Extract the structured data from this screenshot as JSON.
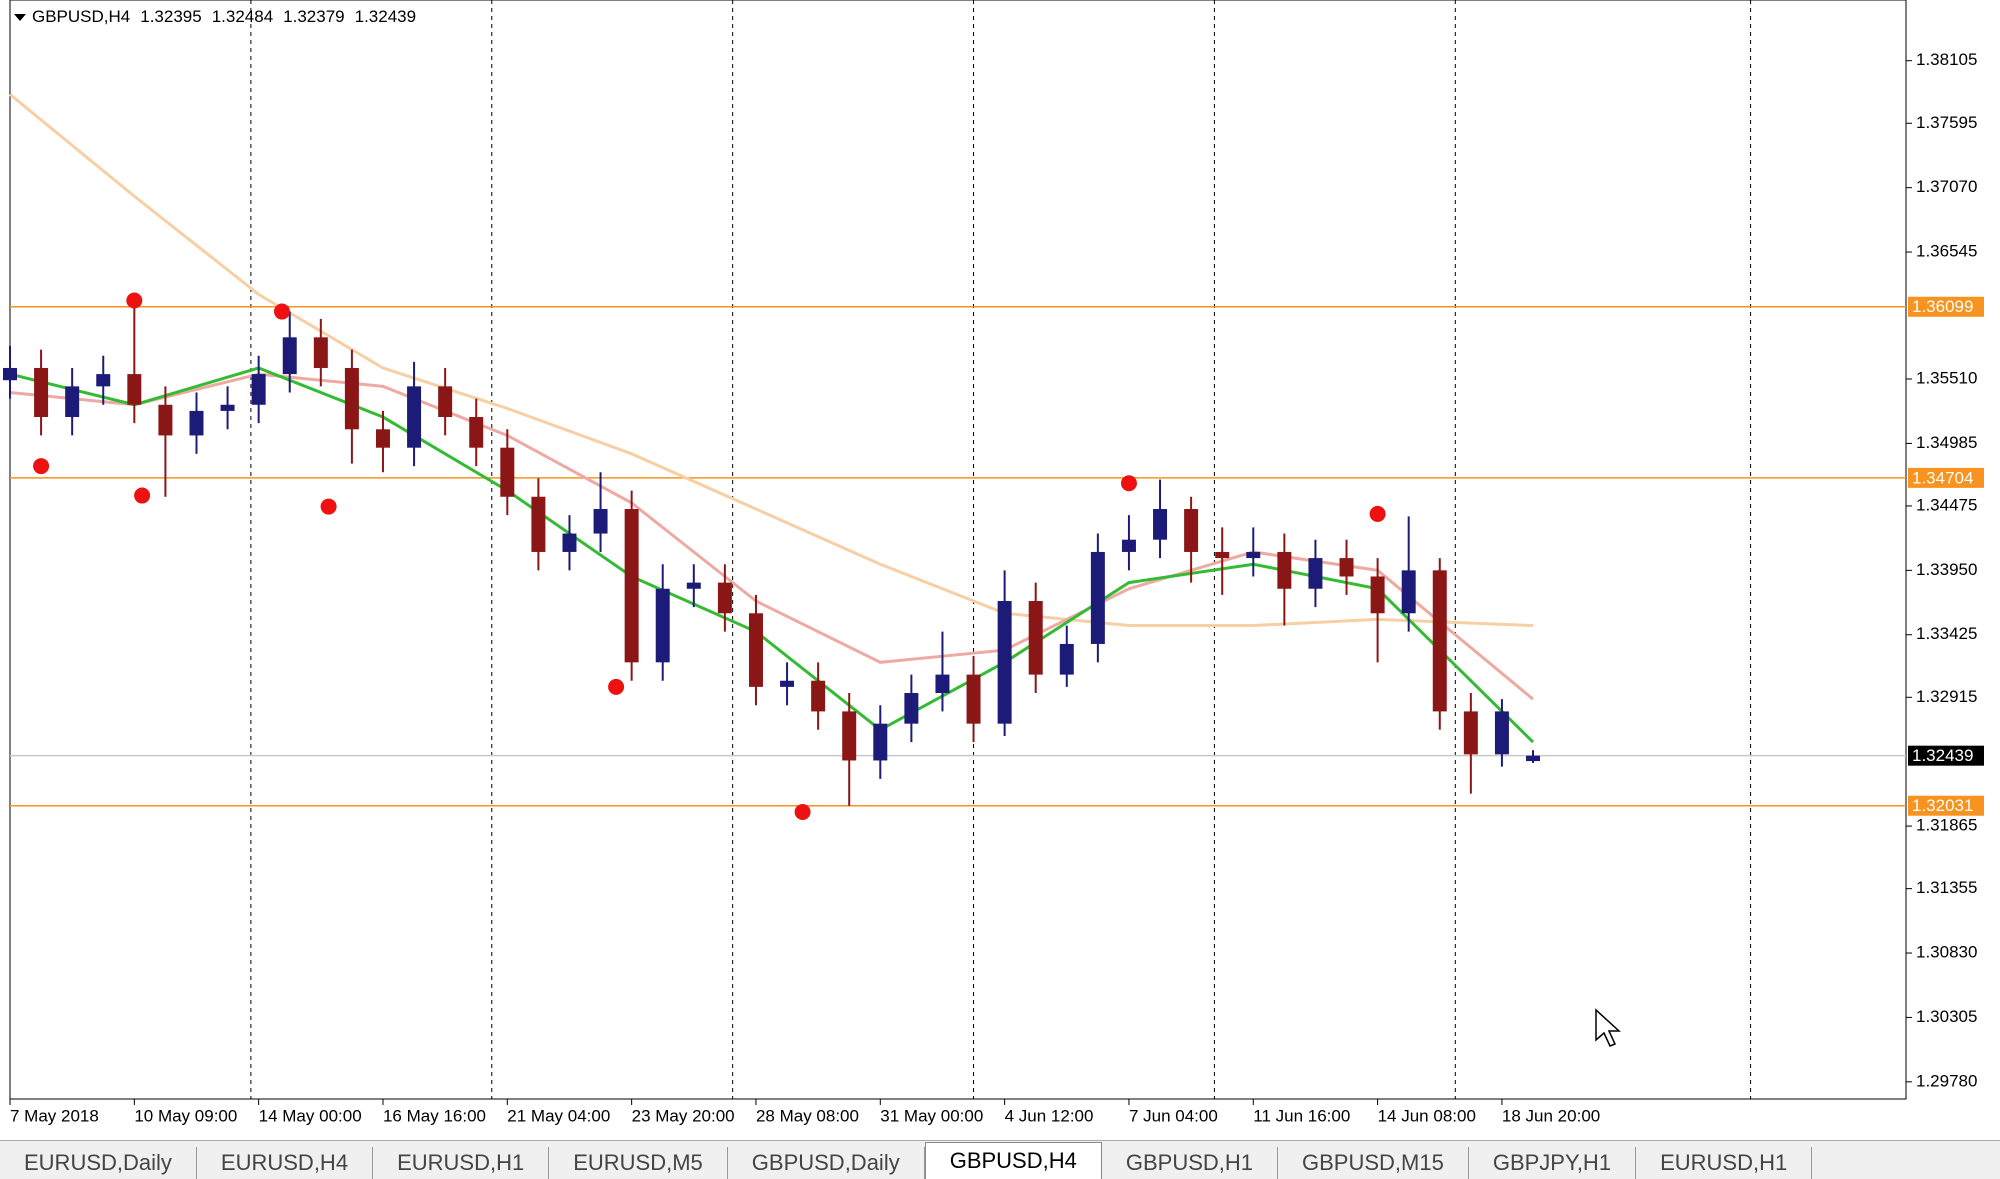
{
  "chart_data": {
    "type": "candlestick",
    "symbol": "GBPUSD,H4",
    "ohlc": [
      1.32395,
      1.32484,
      1.32379,
      1.32439
    ],
    "x": [
      0,
      4,
      8,
      12,
      16,
      20,
      24,
      28,
      32,
      36,
      40,
      44,
      48,
      52,
      56,
      60,
      64,
      68,
      72,
      76,
      80,
      84,
      88,
      92,
      96,
      100,
      104,
      108,
      112,
      116,
      120,
      124,
      128,
      132,
      136,
      140,
      144,
      148,
      152,
      156,
      160,
      164,
      168,
      172,
      176,
      180,
      184,
      188,
      192,
      196
    ],
    "open": [
      1.355,
      1.356,
      1.352,
      1.3545,
      1.3555,
      1.353,
      1.3505,
      1.3525,
      1.353,
      1.3555,
      1.3585,
      1.356,
      1.351,
      1.3495,
      1.3545,
      1.352,
      1.3495,
      1.3455,
      1.341,
      1.3425,
      1.3445,
      1.332,
      1.338,
      1.3385,
      1.336,
      1.33,
      1.3305,
      1.328,
      1.324,
      1.327,
      1.3295,
      1.331,
      1.327,
      1.337,
      1.331,
      1.3335,
      1.341,
      1.342,
      1.3445,
      1.341,
      1.3405,
      1.341,
      1.338,
      1.3405,
      1.339,
      1.336,
      1.3395,
      1.328,
      1.3245,
      1.32395
    ],
    "high": [
      1.3578,
      1.3575,
      1.356,
      1.357,
      1.3615,
      1.3545,
      1.354,
      1.3545,
      1.357,
      1.3606,
      1.36,
      1.3575,
      1.3525,
      1.3565,
      1.356,
      1.3535,
      1.351,
      1.347,
      1.344,
      1.3475,
      1.346,
      1.34,
      1.34,
      1.34,
      1.3375,
      1.332,
      1.332,
      1.3295,
      1.3285,
      1.331,
      1.3345,
      1.3325,
      1.3395,
      1.3385,
      1.335,
      1.3425,
      1.344,
      1.3469,
      1.3455,
      1.343,
      1.343,
      1.3425,
      1.342,
      1.342,
      1.3405,
      1.3439,
      1.3405,
      1.3295,
      1.329,
      1.32484
    ],
    "low": [
      1.3535,
      1.3505,
      1.3505,
      1.353,
      1.3515,
      1.3455,
      1.349,
      1.351,
      1.3515,
      1.354,
      1.3545,
      1.3482,
      1.3475,
      1.348,
      1.3505,
      1.348,
      1.344,
      1.3395,
      1.3395,
      1.341,
      1.3305,
      1.3305,
      1.3365,
      1.3345,
      1.3285,
      1.3285,
      1.3265,
      1.3203,
      1.3225,
      1.3255,
      1.328,
      1.3255,
      1.326,
      1.3295,
      1.33,
      1.332,
      1.3395,
      1.3405,
      1.3385,
      1.3375,
      1.339,
      1.335,
      1.3365,
      1.3375,
      1.332,
      1.3345,
      1.3265,
      1.3213,
      1.3235,
      1.32379
    ],
    "close": [
      1.356,
      1.352,
      1.3545,
      1.3555,
      1.353,
      1.3505,
      1.3525,
      1.353,
      1.3555,
      1.3585,
      1.356,
      1.351,
      1.3495,
      1.3545,
      1.352,
      1.3495,
      1.3455,
      1.341,
      1.3425,
      1.3445,
      1.332,
      1.338,
      1.3385,
      1.336,
      1.33,
      1.3305,
      1.328,
      1.324,
      1.327,
      1.3295,
      1.331,
      1.327,
      1.337,
      1.331,
      1.3335,
      1.341,
      1.342,
      1.3445,
      1.341,
      1.3405,
      1.341,
      1.338,
      1.3405,
      1.339,
      1.336,
      1.3395,
      1.328,
      1.3245,
      1.328,
      1.32439
    ],
    "up_color": "#1c1c78",
    "down_color": "#8a1616",
    "lines": [
      {
        "color": "#f7cfa4",
        "x": [
          0,
          16,
          32,
          48,
          64,
          80,
          96,
          112,
          128,
          144,
          160,
          176,
          196
        ],
        "values": [
          1.3783,
          1.37,
          1.362,
          1.356,
          1.3527,
          1.349,
          1.3445,
          1.34,
          1.336,
          1.335,
          1.335,
          1.3355,
          1.335
        ]
      },
      {
        "color": "#eeaaa2",
        "x": [
          0,
          16,
          32,
          48,
          64,
          80,
          96,
          112,
          128,
          144,
          160,
          176,
          196
        ],
        "values": [
          1.354,
          1.353,
          1.3555,
          1.3545,
          1.3505,
          1.345,
          1.337,
          1.332,
          1.333,
          1.338,
          1.341,
          1.3395,
          1.329
        ]
      },
      {
        "color": "#33bb33",
        "x": [
          0,
          16,
          32,
          48,
          64,
          80,
          96,
          112,
          128,
          144,
          160,
          176,
          196
        ],
        "values": [
          1.3555,
          1.353,
          1.356,
          1.352,
          1.346,
          1.339,
          1.3345,
          1.3265,
          1.332,
          1.3385,
          1.34,
          1.338,
          1.3255
        ]
      }
    ],
    "markers": {
      "color": "#ee1111",
      "x": [
        4,
        16,
        17,
        35,
        41,
        78,
        102,
        144,
        176
      ],
      "values": [
        1.348,
        1.3615,
        1.3456,
        1.3606,
        1.3447,
        1.33,
        1.3198,
        1.3466,
        1.3441
      ]
    },
    "levels": [
      {
        "value": 1.36099,
        "color": "#f7931e"
      },
      {
        "value": 1.34704,
        "color": "#f7931e"
      },
      {
        "value": 1.32031,
        "color": "#f7931e"
      },
      {
        "value": 1.32439,
        "color": "#c8c8c8"
      }
    ],
    "xlim": [
      0,
      244
    ],
    "ylim": [
      1.2964,
      1.386
    ],
    "yticks": [
      1.38105,
      1.37595,
      {
        "value": 1.3707,
        "label": "1.37070"
      },
      1.36545,
      {
        "value": 1.3551,
        "label": "1.35510"
      },
      1.34985,
      1.34475,
      {
        "value": 1.3395,
        "label": "1.33950"
      },
      1.33425,
      1.32915,
      1.31865,
      1.31355,
      {
        "value": 1.3083,
        "label": "1.30830"
      },
      1.30305,
      {
        "value": 1.2978,
        "label": "1.29780"
      }
    ],
    "xticks": [
      {
        "value": 0,
        "label": "7 May 2018"
      },
      {
        "value": 16,
        "label": "10 May 09:00"
      },
      {
        "value": 32,
        "label": "14 May 00:00"
      },
      {
        "value": 48,
        "label": "16 May 16:00"
      },
      {
        "value": 64,
        "label": "21 May 04:00"
      },
      {
        "value": 80,
        "label": "23 May 20:00"
      },
      {
        "value": 96,
        "label": "28 May 08:00"
      },
      {
        "value": 112,
        "label": "31 May 00:00"
      },
      {
        "value": 128,
        "label": "4 Jun 12:00"
      },
      {
        "value": 144,
        "label": "7 Jun 04:00"
      },
      {
        "value": 160,
        "label": "11 Jun 16:00"
      },
      {
        "value": 176,
        "label": "14 Jun 08:00"
      },
      {
        "value": 192,
        "label": "18 Jun 20:00"
      }
    ],
    "vgrid": [
      31,
      62,
      93,
      124,
      155,
      186,
      224
    ]
  },
  "tabs": [
    "EURUSD,Daily",
    "EURUSD,H4",
    "EURUSD,H1",
    "EURUSD,M5",
    "GBPUSD,Daily",
    "GBPUSD,H4",
    "GBPUSD,H1",
    "GBPUSD,M15",
    "GBPJPY,H1",
    "EURUSD,H1"
  ],
  "active_tab": 5
}
